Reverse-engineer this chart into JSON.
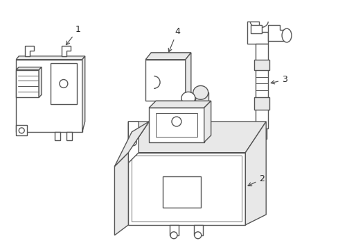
{
  "background_color": "#ffffff",
  "line_color": "#555555",
  "line_width": 1.0,
  "label_color": "#222222",
  "arrow_color": "#555555"
}
